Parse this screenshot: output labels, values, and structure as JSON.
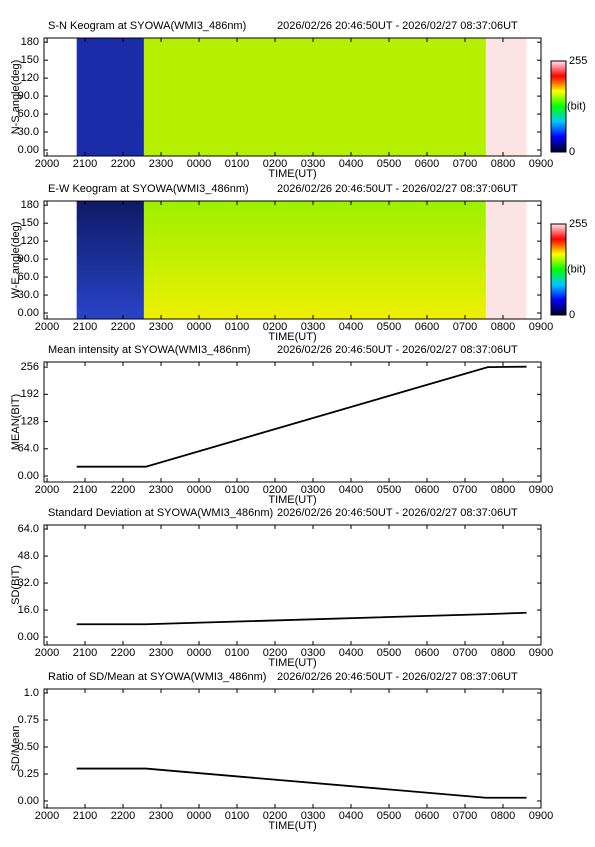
{
  "chart_data": [
    {
      "type": "keogram",
      "title": "S-N Keogram at SYOWA(WMI3_486nm)",
      "subtitle": "2026/02/26 20:46:50UT - 2026/02/27 08:37:06UT",
      "xlabel": "TIME(UT)",
      "ylabel": "N-S angle(deg)",
      "xlim": [
        19.92,
        33.0
      ],
      "xticks": [
        {
          "value": 20,
          "label": "2000"
        },
        {
          "value": 21,
          "label": "2100"
        },
        {
          "value": 22,
          "label": "2200"
        },
        {
          "value": 23,
          "label": "2300"
        },
        {
          "value": 24,
          "label": "0000"
        },
        {
          "value": 25,
          "label": "0100"
        },
        {
          "value": 26,
          "label": "0200"
        },
        {
          "value": 27,
          "label": "0300"
        },
        {
          "value": 28,
          "label": "0400"
        },
        {
          "value": 29,
          "label": "0500"
        },
        {
          "value": 30,
          "label": "0600"
        },
        {
          "value": 31,
          "label": "0700"
        },
        {
          "value": 32,
          "label": "0800"
        },
        {
          "value": 33,
          "label": "0900"
        }
      ],
      "ylim": [
        -10,
        187
      ],
      "yticks": [
        {
          "value": 0,
          "label": "0.00"
        },
        {
          "value": 30,
          "label": "30.0"
        },
        {
          "value": 60,
          "label": "60.0"
        },
        {
          "value": 90,
          "label": "90.0"
        },
        120,
        150,
        180
      ],
      "blocks": [
        {
          "x0": 20.78,
          "x1": 22.55,
          "value": 20,
          "color": "#1a2ca8",
          "color_bottom": "#1a2ca8"
        },
        {
          "x0": 22.55,
          "x1": 31.55,
          "value": 150,
          "color": "#b4f000",
          "color_bottom": "#b4f000"
        },
        {
          "x0": 31.55,
          "x1": 32.62,
          "value": 250,
          "color": "#fde4e4",
          "color_bottom": "#fde4e4"
        }
      ],
      "colorbar": {
        "clim": [
          0,
          255
        ],
        "ticks": [
          0,
          255
        ],
        "label": "(bit)",
        "colors": [
          "#000020",
          "#0000ff",
          "#00c8ff",
          "#00ff00",
          "#ffff00",
          "#ff0000",
          "#ffe8ee"
        ]
      }
    },
    {
      "type": "keogram",
      "title": "E-W Keogram at SYOWA(WMI3_486nm)",
      "subtitle": "2026/02/26 20:46:50UT - 2026/02/27 08:37:06UT",
      "xlabel": "TIME(UT)",
      "ylabel": "W-E angle(deg)",
      "xlim": [
        19.92,
        33.0
      ],
      "xticks": [
        {
          "value": 20,
          "label": "2000"
        },
        {
          "value": 21,
          "label": "2100"
        },
        {
          "value": 22,
          "label": "2200"
        },
        {
          "value": 23,
          "label": "2300"
        },
        {
          "value": 24,
          "label": "0000"
        },
        {
          "value": 25,
          "label": "0100"
        },
        {
          "value": 26,
          "label": "0200"
        },
        {
          "value": 27,
          "label": "0300"
        },
        {
          "value": 28,
          "label": "0400"
        },
        {
          "value": 29,
          "label": "0500"
        },
        {
          "value": 30,
          "label": "0600"
        },
        {
          "value": 31,
          "label": "0700"
        },
        {
          "value": 32,
          "label": "0800"
        },
        {
          "value": 33,
          "label": "0900"
        }
      ],
      "ylim": [
        -10,
        187
      ],
      "yticks": [
        {
          "value": 0,
          "label": "0.00"
        },
        {
          "value": 30,
          "label": "30.0"
        },
        {
          "value": 60,
          "label": "60.0"
        },
        {
          "value": 90,
          "label": "90.0"
        },
        120,
        150,
        180
      ],
      "blocks": [
        {
          "x0": 20.78,
          "x1": 22.55,
          "value": 20,
          "color": "#0e1a66",
          "color_bottom": "#2a44c8"
        },
        {
          "x0": 22.55,
          "x1": 31.55,
          "value": 150,
          "color": "#9cf000",
          "color_bottom": "#ecf000"
        },
        {
          "x0": 31.55,
          "x1": 32.62,
          "value": 250,
          "color": "#fde4e4",
          "color_bottom": "#fde4e4"
        }
      ],
      "colorbar": {
        "clim": [
          0,
          255
        ],
        "ticks": [
          0,
          255
        ],
        "label": "(bit)",
        "colors": [
          "#000020",
          "#0000ff",
          "#00c8ff",
          "#00ff00",
          "#ffff00",
          "#ff0000",
          "#ffe8ee"
        ]
      }
    },
    {
      "type": "line",
      "title": "Mean intensity at SYOWA(WMI3_486nm)",
      "subtitle": "2026/02/26 20:46:50UT - 2026/02/27 08:37:06UT",
      "xlabel": "TIME(UT)",
      "ylabel": "MEAN(BIT)",
      "xlim": [
        19.92,
        33.0
      ],
      "xticks": [
        {
          "value": 20,
          "label": "2000"
        },
        {
          "value": 21,
          "label": "2100"
        },
        {
          "value": 22,
          "label": "2200"
        },
        {
          "value": 23,
          "label": "2300"
        },
        {
          "value": 24,
          "label": "0000"
        },
        {
          "value": 25,
          "label": "0100"
        },
        {
          "value": 26,
          "label": "0200"
        },
        {
          "value": 27,
          "label": "0300"
        },
        {
          "value": 28,
          "label": "0400"
        },
        {
          "value": 29,
          "label": "0500"
        },
        {
          "value": 30,
          "label": "0600"
        },
        {
          "value": 31,
          "label": "0700"
        },
        {
          "value": 32,
          "label": "0800"
        },
        {
          "value": 33,
          "label": "0900"
        }
      ],
      "ylim": [
        -14,
        268
      ],
      "yticks": [
        {
          "value": 0,
          "label": "0.00"
        },
        {
          "value": 64,
          "label": "64.0"
        },
        128,
        192,
        256
      ],
      "x": [
        20.78,
        22.6,
        31.6,
        32.62
      ],
      "values": [
        22,
        22,
        256,
        257
      ],
      "color": "#000000"
    },
    {
      "type": "line",
      "title": "Standard Deviation at SYOWA(WMI3_486nm)",
      "subtitle": "2026/02/26 20:46:50UT - 2026/02/27 08:37:06UT",
      "xlabel": "TIME(UT)",
      "ylabel": "SD(BIT)",
      "xlim": [
        19.92,
        33.0
      ],
      "xticks": [
        {
          "value": 20,
          "label": "2000"
        },
        {
          "value": 21,
          "label": "2100"
        },
        {
          "value": 22,
          "label": "2200"
        },
        {
          "value": 23,
          "label": "2300"
        },
        {
          "value": 24,
          "label": "0000"
        },
        {
          "value": 25,
          "label": "0100"
        },
        {
          "value": 26,
          "label": "0200"
        },
        {
          "value": 27,
          "label": "0300"
        },
        {
          "value": 28,
          "label": "0400"
        },
        {
          "value": 29,
          "label": "0500"
        },
        {
          "value": 30,
          "label": "0600"
        },
        {
          "value": 31,
          "label": "0700"
        },
        {
          "value": 32,
          "label": "0800"
        },
        {
          "value": 33,
          "label": "0900"
        }
      ],
      "ylim": [
        -4.7,
        66.4
      ],
      "yticks": [
        {
          "value": 0,
          "label": "0.00"
        },
        {
          "value": 16,
          "label": "16.0"
        },
        {
          "value": 32,
          "label": "32.0"
        },
        {
          "value": 48,
          "label": "48.0"
        },
        {
          "value": 64,
          "label": "64.0"
        }
      ],
      "x": [
        20.78,
        22.6,
        31.6,
        32.62
      ],
      "values": [
        7.6,
        7.6,
        13.6,
        14.4
      ],
      "color": "#000000"
    },
    {
      "type": "line",
      "title": "Ratio of SD/Mean at SYOWA(WMI3_486nm)",
      "subtitle": "2026/02/26 20:46:50UT - 2026/02/27 08:37:06UT",
      "xlabel": "TIME(UT)",
      "ylabel": "SD/Mean",
      "xlim": [
        19.92,
        33.0
      ],
      "xticks": [
        {
          "value": 20,
          "label": "2000"
        },
        {
          "value": 21,
          "label": "2100"
        },
        {
          "value": 22,
          "label": "2200"
        },
        {
          "value": 23,
          "label": "2300"
        },
        {
          "value": 24,
          "label": "0000"
        },
        {
          "value": 25,
          "label": "0100"
        },
        {
          "value": 26,
          "label": "0200"
        },
        {
          "value": 27,
          "label": "0300"
        },
        {
          "value": 28,
          "label": "0400"
        },
        {
          "value": 29,
          "label": "0500"
        },
        {
          "value": 30,
          "label": "0600"
        },
        {
          "value": 31,
          "label": "0700"
        },
        {
          "value": 32,
          "label": "0800"
        },
        {
          "value": 33,
          "label": "0900"
        }
      ],
      "ylim": [
        -0.065,
        1.037
      ],
      "yticks": [
        {
          "value": 0,
          "label": "0.00"
        },
        {
          "value": 0.25,
          "label": "0.25"
        },
        {
          "value": 0.5,
          "label": "0.50"
        },
        {
          "value": 0.75,
          "label": "0.75"
        },
        {
          "value": 1,
          "label": "1.0"
        }
      ],
      "x": [
        20.78,
        22.6,
        31.55,
        32.62
      ],
      "values": [
        0.3,
        0.3,
        0.03,
        0.03
      ],
      "color": "#000000"
    }
  ]
}
